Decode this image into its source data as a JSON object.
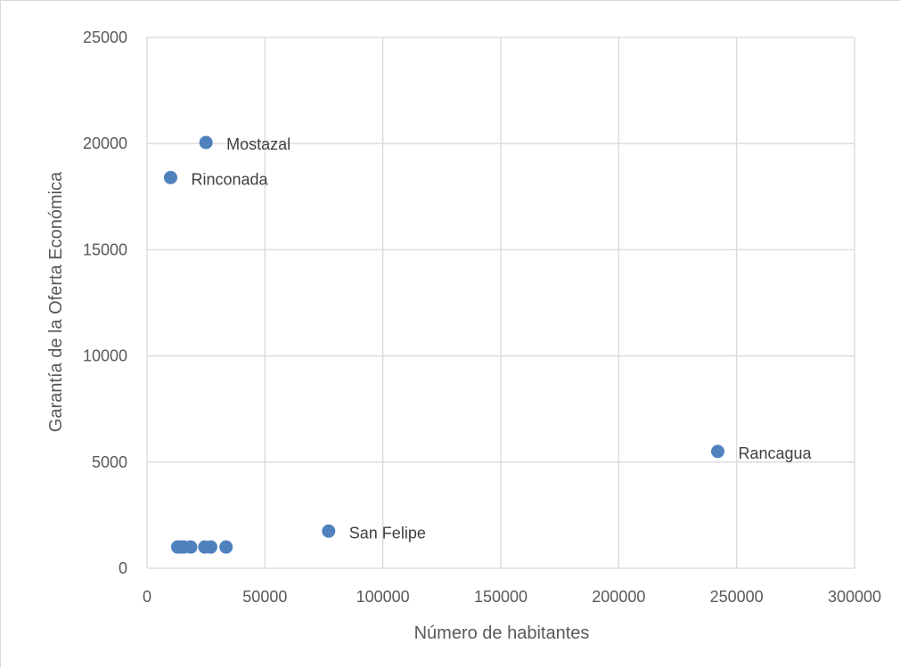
{
  "chart_data": {
    "type": "scatter",
    "xlabel": "Número de habitantes",
    "ylabel": "Garantía de la Oferta Económica",
    "xlim": [
      0,
      300000
    ],
    "ylim": [
      0,
      25000
    ],
    "x_ticks": [
      0,
      50000,
      100000,
      150000,
      200000,
      250000,
      300000
    ],
    "y_ticks": [
      0,
      5000,
      10000,
      15000,
      20000,
      25000
    ],
    "x_tick_labels": [
      "0",
      "50000",
      "100000",
      "150000",
      "200000",
      "250000",
      "300000"
    ],
    "y_tick_labels": [
      "0",
      "5000",
      "10000",
      "15000",
      "20000",
      "25000"
    ],
    "grid": true,
    "marker_color": "#4f81bd",
    "points": [
      {
        "x": 25000,
        "y": 20050,
        "label": "Mostazal"
      },
      {
        "x": 10000,
        "y": 18400,
        "label": "Rinconada"
      },
      {
        "x": 242000,
        "y": 5500,
        "label": "Rancagua"
      },
      {
        "x": 77000,
        "y": 1750,
        "label": "San Felipe"
      },
      {
        "x": 13000,
        "y": 1000,
        "label": ""
      },
      {
        "x": 14000,
        "y": 1000,
        "label": ""
      },
      {
        "x": 15500,
        "y": 1000,
        "label": ""
      },
      {
        "x": 18500,
        "y": 1000,
        "label": ""
      },
      {
        "x": 24500,
        "y": 1000,
        "label": ""
      },
      {
        "x": 27000,
        "y": 1000,
        "label": ""
      },
      {
        "x": 33500,
        "y": 1000,
        "label": ""
      }
    ]
  }
}
